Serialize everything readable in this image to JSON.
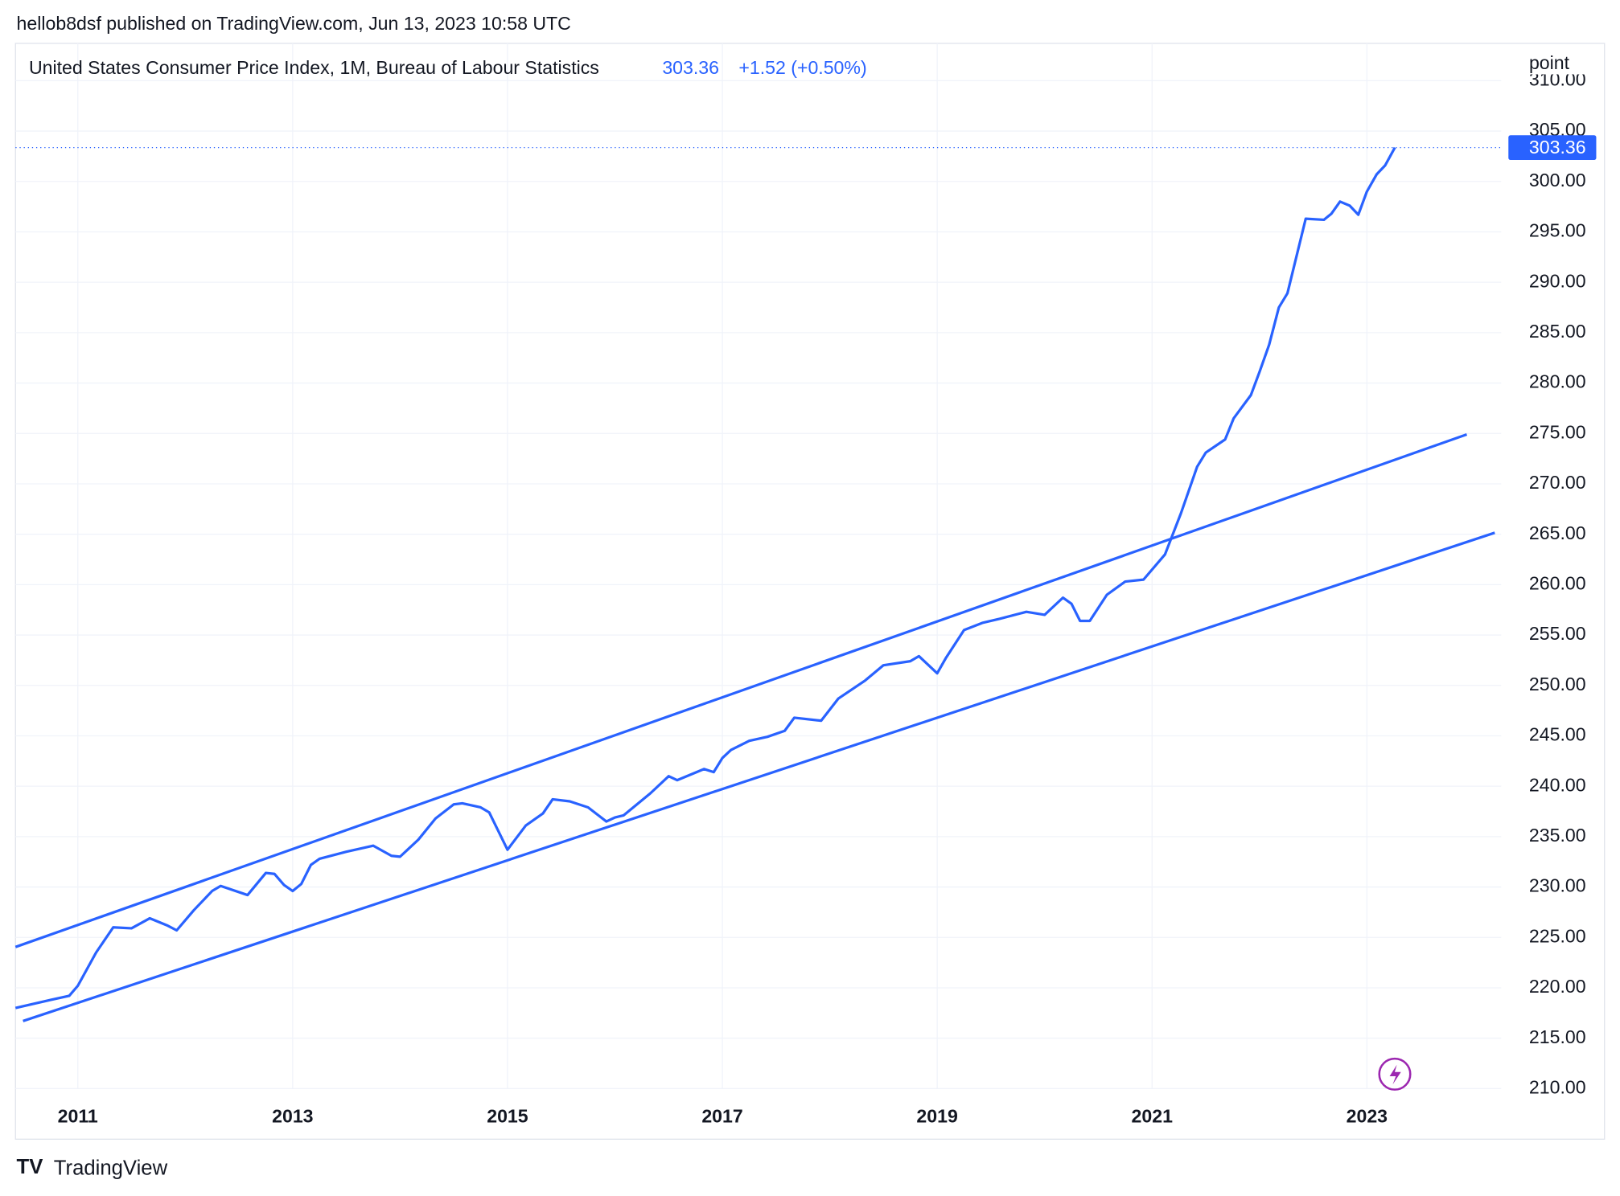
{
  "header": {
    "published": "hellob8dsf published on TradingView.com, Jun 13, 2023 10:58 UTC"
  },
  "legend": {
    "title": "United States Consumer Price Index, 1M, Bureau of Labour Statistics",
    "last_value": 303.36,
    "change": "+1.52 (+0.50%)"
  },
  "footer": {
    "brand": "TradingView"
  },
  "chart_data": {
    "type": "line",
    "y_unit": "point",
    "xlim": [
      2010.42,
      2024.25
    ],
    "xticks": [
      2011,
      2013,
      2015,
      2017,
      2019,
      2021,
      2023
    ],
    "ylim": [
      210,
      313.7
    ],
    "yticks": [
      {
        "value": 210,
        "label": "210.00"
      },
      {
        "value": 215,
        "label": "215.00"
      },
      {
        "value": 220,
        "label": "220.00"
      },
      {
        "value": 225,
        "label": "225.00"
      },
      {
        "value": 230,
        "label": "230.00"
      },
      {
        "value": 235,
        "label": "235.00"
      },
      {
        "value": 240,
        "label": "240.00"
      },
      {
        "value": 245,
        "label": "245.00"
      },
      {
        "value": 250,
        "label": "250.00"
      },
      {
        "value": 255,
        "label": "255.00"
      },
      {
        "value": 260,
        "label": "260.00"
      },
      {
        "value": 265,
        "label": "265.00"
      },
      {
        "value": 270,
        "label": "270.00"
      },
      {
        "value": 275,
        "label": "275.00"
      },
      {
        "value": 280,
        "label": "280.00"
      },
      {
        "value": 285,
        "label": "285.00"
      },
      {
        "value": 290,
        "label": "290.00"
      },
      {
        "value": 295,
        "label": "295.00"
      },
      {
        "value": 300,
        "label": "300.00"
      },
      {
        "value": 305,
        "label": "305.00"
      },
      {
        "value": 310,
        "label": "310.00"
      }
    ],
    "grid": true,
    "series": [
      {
        "color": "#2962ff",
        "x": [
          2010.42,
          2010.75,
          2010.92,
          2011.0,
          2011.17,
          2011.33,
          2011.5,
          2011.67,
          2011.83,
          2011.92,
          2012.08,
          2012.25,
          2012.33,
          2012.58,
          2012.75,
          2012.83,
          2012.92,
          2013.0,
          2013.08,
          2013.17,
          2013.25,
          2013.5,
          2013.75,
          2013.92,
          2014.0,
          2014.17,
          2014.33,
          2014.5,
          2014.58,
          2014.75,
          2014.83,
          2015.0,
          2015.17,
          2015.33,
          2015.42,
          2015.58,
          2015.75,
          2015.92,
          2016.0,
          2016.08,
          2016.33,
          2016.5,
          2016.58,
          2016.83,
          2016.92,
          2017.0,
          2017.08,
          2017.25,
          2017.42,
          2017.58,
          2017.67,
          2017.92,
          2018.08,
          2018.33,
          2018.5,
          2018.75,
          2018.83,
          2019.0,
          2019.08,
          2019.25,
          2019.42,
          2019.58,
          2019.83,
          2020.0,
          2020.17,
          2020.25,
          2020.33,
          2020.42,
          2020.58,
          2020.75,
          2020.92,
          2021.12,
          2021.27,
          2021.42,
          2021.5,
          2021.68,
          2021.76,
          2021.92,
          2022.0,
          2022.09,
          2022.18,
          2022.26,
          2022.43,
          2022.6,
          2022.67,
          2022.75,
          2022.84,
          2022.92,
          2023.0,
          2023.09,
          2023.17,
          2023.26
        ],
        "values": [
          218.0,
          218.8,
          219.2,
          220.2,
          223.5,
          226.0,
          225.9,
          226.9,
          226.2,
          225.7,
          227.7,
          229.6,
          230.1,
          229.2,
          231.4,
          231.3,
          230.2,
          229.6,
          230.3,
          232.2,
          232.8,
          233.5,
          234.1,
          233.1,
          233.0,
          234.7,
          236.8,
          238.2,
          238.3,
          237.9,
          237.4,
          233.7,
          236.1,
          237.3,
          238.7,
          238.5,
          237.9,
          236.5,
          236.9,
          237.1,
          239.3,
          241.0,
          240.6,
          241.7,
          241.4,
          242.8,
          243.6,
          244.5,
          244.9,
          245.5,
          246.8,
          246.5,
          248.7,
          250.5,
          252.0,
          252.4,
          252.9,
          251.2,
          252.7,
          255.5,
          256.2,
          256.6,
          257.3,
          257.0,
          258.7,
          258.1,
          256.4,
          256.4,
          259.0,
          260.3,
          260.5,
          263.0,
          267.1,
          271.7,
          273.1,
          274.4,
          276.5,
          278.8,
          281.1,
          283.8,
          287.5,
          288.9,
          296.3,
          296.2,
          296.8,
          298.0,
          297.6,
          296.7,
          299.0,
          300.7,
          301.6,
          303.36
        ]
      },
      {
        "color": "#2962ff",
        "x": [
          2010.42,
          2023.93
        ],
        "values": [
          224.05,
          274.9
        ]
      },
      {
        "color": "#2962ff",
        "x": [
          2010.49,
          2024.19
        ],
        "values": [
          216.7,
          265.15
        ]
      }
    ]
  }
}
